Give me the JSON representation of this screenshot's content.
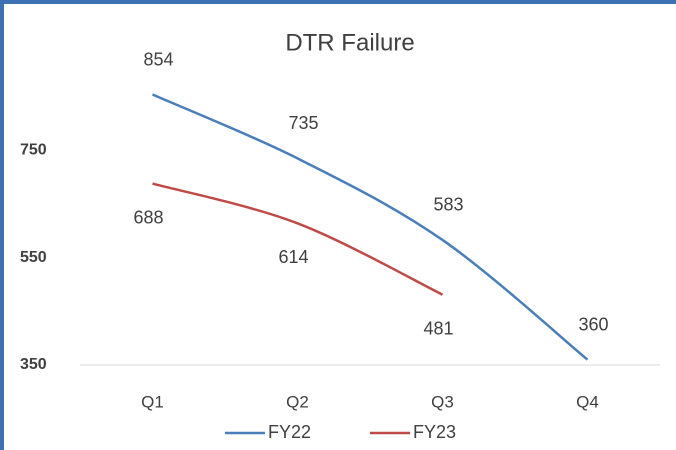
{
  "chart_data": {
    "type": "line",
    "title": "DTR Failure",
    "categories": [
      "Q1",
      "Q2",
      "Q3",
      "Q4"
    ],
    "series": [
      {
        "name": "FY22",
        "color": "#4a7ebb",
        "values": [
          854,
          735,
          583,
          360
        ]
      },
      {
        "name": "FY23",
        "color": "#be4b48",
        "values": [
          688,
          614,
          481,
          null
        ]
      }
    ],
    "ylim": [
      350,
      950
    ],
    "yticks": [
      350,
      550,
      750
    ],
    "grid": false,
    "legend": "bottom",
    "smooth": true
  }
}
